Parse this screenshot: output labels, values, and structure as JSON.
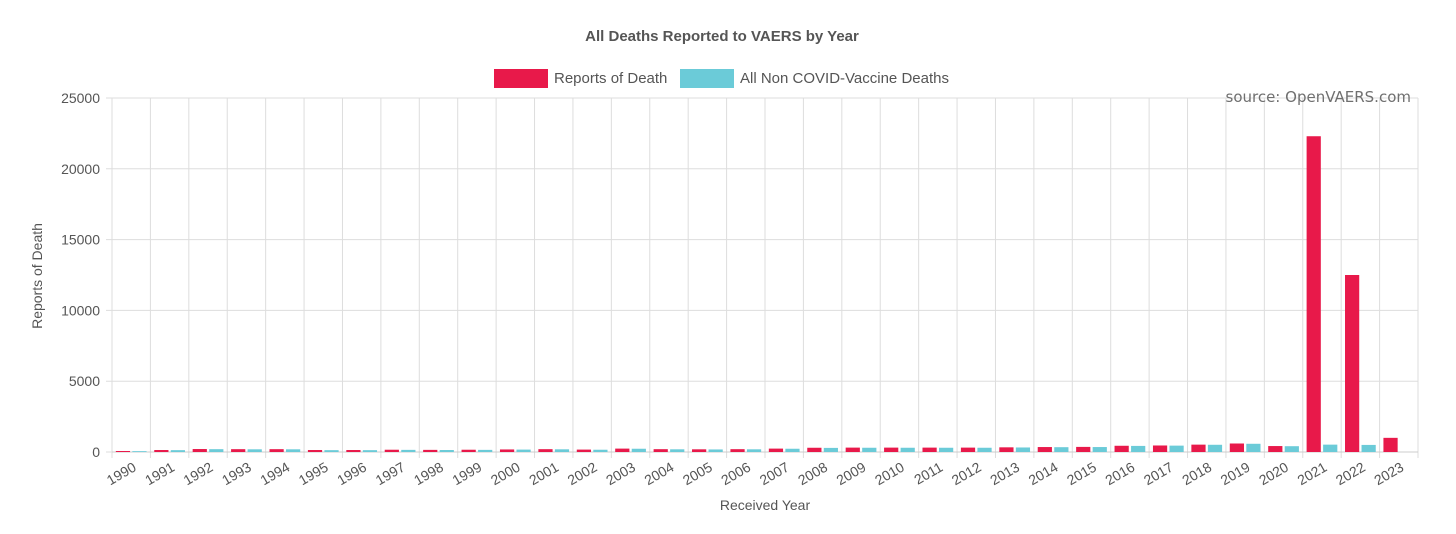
{
  "chart_data": {
    "type": "bar",
    "title": "All Deaths Reported to VAERS by Year",
    "xlabel": "Received Year",
    "ylabel": "Reports of Death",
    "ylim": [
      0,
      25000
    ],
    "yticks": [
      0,
      5000,
      10000,
      15000,
      20000,
      25000
    ],
    "grid": true,
    "legend_position": "top-center",
    "source": "source: OpenVAERS.com",
    "categories": [
      "1990",
      "1991",
      "1992",
      "1993",
      "1994",
      "1995",
      "1996",
      "1997",
      "1998",
      "1999",
      "2000",
      "2001",
      "2002",
      "2003",
      "2004",
      "2005",
      "2006",
      "2007",
      "2008",
      "2009",
      "2010",
      "2011",
      "2012",
      "2013",
      "2014",
      "2015",
      "2016",
      "2017",
      "2018",
      "2019",
      "2020",
      "2021",
      "2022",
      "2023"
    ],
    "series": [
      {
        "name": "Reports of Death",
        "color": "#e8194a",
        "values": [
          70,
          140,
          210,
          200,
          200,
          140,
          140,
          160,
          150,
          160,
          180,
          200,
          170,
          240,
          200,
          190,
          200,
          240,
          300,
          310,
          310,
          310,
          310,
          330,
          350,
          360,
          440,
          460,
          520,
          600,
          420,
          22300,
          12500,
          1000
        ]
      },
      {
        "name": "All Non COVID-Vaccine Deaths",
        "color": "#6bcbd8",
        "values": [
          60,
          130,
          200,
          190,
          190,
          130,
          130,
          150,
          140,
          150,
          170,
          190,
          160,
          230,
          190,
          180,
          190,
          230,
          290,
          300,
          300,
          300,
          300,
          320,
          340,
          350,
          430,
          450,
          510,
          580,
          410,
          520,
          500,
          0
        ]
      }
    ]
  }
}
